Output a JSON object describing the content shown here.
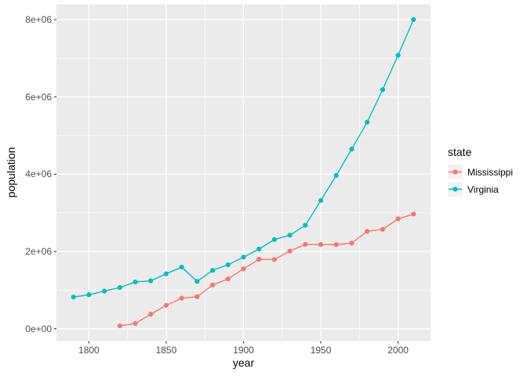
{
  "figure": {
    "background": "#FFFFFF",
    "panel_background": "#EBEBEB",
    "grid_color": "#FFFFFF",
    "tick_color": "#333333",
    "axis_text_color": "#4D4D4D",
    "legend_key_fill": "#F2F2F2"
  },
  "chart_data": {
    "type": "line",
    "title": "",
    "xlabel": "year",
    "ylabel": "population",
    "legend_title": "state",
    "legend_position": "right",
    "grid": true,
    "xlim": [
      1779,
      2021
    ],
    "ylim": [
      -320831,
      8397303
    ],
    "x_ticks": [
      1800,
      1850,
      1900,
      1950,
      2000
    ],
    "x_tick_labels": [
      "1800",
      "1850",
      "1900",
      "1950",
      "2000"
    ],
    "x_minor_ticks": [
      1825,
      1875,
      1925,
      1975
    ],
    "y_ticks": [
      0,
      2000000,
      4000000,
      6000000,
      8000000
    ],
    "y_tick_labels": [
      "0e+00",
      "2e+06",
      "4e+06",
      "6e+06",
      "8e+06"
    ],
    "y_minor_ticks": [
      1000000,
      3000000,
      5000000,
      7000000
    ],
    "series": [
      {
        "name": "Mississippi",
        "color": "#F8766D",
        "x": [
          1820,
          1830,
          1840,
          1850,
          1860,
          1870,
          1880,
          1890,
          1900,
          1910,
          1920,
          1930,
          1940,
          1950,
          1960,
          1970,
          1980,
          1990,
          2000,
          2010
        ],
        "values": [
          75448,
          136621,
          375651,
          606526,
          791305,
          827922,
          1131597,
          1289600,
          1551270,
          1797114,
          1790618,
          2009821,
          2183796,
          2178914,
          2178141,
          2216912,
          2520638,
          2573216,
          2844658,
          2967297
        ]
      },
      {
        "name": "Virginia",
        "color": "#00BFC4",
        "x": [
          1790,
          1800,
          1810,
          1820,
          1830,
          1840,
          1850,
          1860,
          1870,
          1880,
          1890,
          1900,
          1910,
          1920,
          1930,
          1940,
          1950,
          1960,
          1970,
          1980,
          1990,
          2000,
          2010
        ],
        "values": [
          821287,
          880200,
          974600,
          1065366,
          1211405,
          1239797,
          1421661,
          1596318,
          1225163,
          1512565,
          1655980,
          1854184,
          2061612,
          2309187,
          2421851,
          2677773,
          3318680,
          3966949,
          4648494,
          5346818,
          6187358,
          7078515,
          8001024
        ]
      }
    ]
  },
  "legend": {
    "title": "state",
    "items": [
      {
        "label": "Mississippi",
        "color": "#F8766D"
      },
      {
        "label": "Virginia",
        "color": "#00BFC4"
      }
    ]
  }
}
